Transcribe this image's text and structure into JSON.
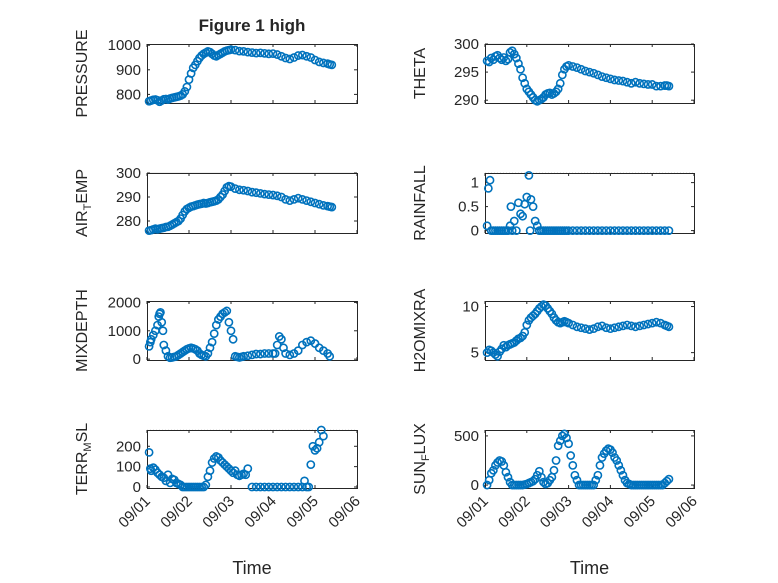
{
  "figure": {
    "title": "Figure 1 high"
  },
  "colors": {
    "marker": "#0072BD",
    "axis": "#262626",
    "grid": "#dfdfdf"
  },
  "chart_data": [
    {
      "type": "scatter",
      "ylabel": "PRESSURE",
      "xlabel": "",
      "ylim": [
        765,
        1005
      ],
      "yticks": [
        800,
        900,
        1000
      ],
      "xticks": [
        "09/01",
        "09/02",
        "09/03",
        "09/04",
        "09/05",
        "09/06"
      ],
      "grid": true,
      "minor_grid": true,
      "x": [
        0.05,
        0.1,
        0.15,
        0.2,
        0.25,
        0.3,
        0.35,
        0.4,
        0.45,
        0.5,
        0.55,
        0.6,
        0.65,
        0.7,
        0.75,
        0.8,
        0.85,
        0.9,
        0.95,
        1.0,
        1.05,
        1.1,
        1.15,
        1.2,
        1.25,
        1.3,
        1.35,
        1.4,
        1.45,
        1.5,
        1.55,
        1.6,
        1.65,
        1.7,
        1.75,
        1.8,
        1.85,
        1.9,
        1.95,
        2.0,
        2.1,
        2.2,
        2.3,
        2.4,
        2.5,
        2.6,
        2.7,
        2.8,
        2.9,
        3.0,
        3.1,
        3.2,
        3.3,
        3.4,
        3.5,
        3.6,
        3.7,
        3.8,
        3.9,
        4.0,
        4.1,
        4.2,
        4.3,
        4.35,
        4.4
      ],
      "y": [
        772,
        775,
        778,
        779,
        776,
        770,
        775,
        780,
        781,
        779,
        783,
        786,
        788,
        790,
        792,
        795,
        800,
        812,
        830,
        860,
        885,
        908,
        920,
        935,
        948,
        958,
        965,
        970,
        975,
        972,
        965,
        958,
        955,
        960,
        965,
        970,
        975,
        978,
        980,
        982,
        980,
        976,
        975,
        972,
        970,
        968,
        969,
        967,
        965,
        966,
        962,
        955,
        948,
        944,
        950,
        958,
        960,
        955,
        950,
        940,
        932,
        928,
        925,
        922,
        920
      ]
    },
    {
      "type": "scatter",
      "ylabel": "THETA",
      "xlabel": "",
      "ylim": [
        289.5,
        300
      ],
      "yticks": [
        290,
        295,
        300
      ],
      "xticks": [
        "09/01",
        "09/02",
        "09/03",
        "09/04",
        "09/05",
        "09/06"
      ],
      "grid": true,
      "minor_grid": true,
      "x": [
        0.05,
        0.1,
        0.15,
        0.2,
        0.25,
        0.3,
        0.35,
        0.4,
        0.45,
        0.5,
        0.55,
        0.6,
        0.65,
        0.7,
        0.75,
        0.8,
        0.85,
        0.9,
        0.95,
        1.0,
        1.05,
        1.1,
        1.15,
        1.2,
        1.25,
        1.3,
        1.35,
        1.4,
        1.45,
        1.5,
        1.55,
        1.6,
        1.65,
        1.7,
        1.75,
        1.8,
        1.85,
        1.9,
        1.95,
        2.0,
        2.1,
        2.2,
        2.3,
        2.4,
        2.5,
        2.6,
        2.7,
        2.8,
        2.9,
        3.0,
        3.1,
        3.2,
        3.3,
        3.4,
        3.5,
        3.6,
        3.7,
        3.8,
        3.9,
        4.0,
        4.1,
        4.2,
        4.3,
        4.35,
        4.4
      ],
      "y": [
        297,
        296.8,
        297.5,
        297.2,
        297.8,
        298,
        297.5,
        297.2,
        297.6,
        297,
        297.3,
        298.5,
        298.8,
        298.2,
        297.5,
        296.5,
        295.5,
        294,
        293,
        292,
        291.5,
        291,
        290.5,
        290,
        289.8,
        290,
        290.2,
        290.5,
        291,
        291.2,
        291.3,
        291,
        291.2,
        291.5,
        292,
        293,
        294.5,
        295.5,
        296,
        296.2,
        296,
        295.8,
        295.5,
        295.2,
        295,
        294.8,
        294.5,
        294.2,
        294,
        293.8,
        293.6,
        293.5,
        293.4,
        293.2,
        293,
        293.2,
        293,
        292.9,
        292.8,
        292.8,
        292.5,
        292.5,
        292.6,
        292.6,
        292.5
      ]
    },
    {
      "type": "scatter",
      "ylabel": "AIR_TEMP",
      "xlabel": "",
      "ylim": [
        275,
        300
      ],
      "yticks": [
        280,
        290,
        300
      ],
      "xticks": [
        "09/01",
        "09/02",
        "09/03",
        "09/04",
        "09/05",
        "09/06"
      ],
      "grid": true,
      "minor_grid": true,
      "x": [
        0.05,
        0.1,
        0.15,
        0.2,
        0.25,
        0.3,
        0.35,
        0.4,
        0.45,
        0.5,
        0.55,
        0.6,
        0.65,
        0.7,
        0.75,
        0.8,
        0.85,
        0.9,
        0.95,
        1.0,
        1.05,
        1.1,
        1.15,
        1.2,
        1.25,
        1.3,
        1.35,
        1.4,
        1.45,
        1.5,
        1.55,
        1.6,
        1.65,
        1.7,
        1.75,
        1.8,
        1.85,
        1.9,
        1.95,
        2.0,
        2.1,
        2.2,
        2.3,
        2.4,
        2.5,
        2.6,
        2.7,
        2.8,
        2.9,
        3.0,
        3.1,
        3.2,
        3.3,
        3.4,
        3.5,
        3.6,
        3.7,
        3.8,
        3.9,
        4.0,
        4.1,
        4.2,
        4.3,
        4.35,
        4.4
      ],
      "y": [
        276,
        276.2,
        276.5,
        276.8,
        276.5,
        276.8,
        277,
        277.2,
        277.5,
        277.6,
        278,
        278.5,
        279,
        279.5,
        280,
        281,
        282.5,
        284,
        285,
        285.5,
        286,
        286.2,
        286.5,
        286.8,
        287,
        287.2,
        287.5,
        287.3,
        287.5,
        287.8,
        288,
        288.2,
        288.5,
        289,
        290,
        291,
        292.5,
        294,
        294.5,
        294.3,
        293.5,
        293,
        292.8,
        292.5,
        292,
        291.8,
        291.5,
        291.2,
        291,
        290.8,
        290.5,
        290,
        289,
        288.5,
        289,
        289.5,
        289,
        288.5,
        288,
        287.5,
        287,
        286.5,
        286.2,
        286,
        285.8
      ]
    },
    {
      "type": "scatter",
      "ylabel": "RAINFALL",
      "xlabel": "",
      "ylim": [
        -0.05,
        1.2
      ],
      "yticks": [
        0,
        0.5,
        1
      ],
      "yticklabels": [
        "0",
        "0.5",
        "1"
      ],
      "xticks": [
        "09/01",
        "09/02",
        "09/03",
        "09/04",
        "09/05",
        "09/06"
      ],
      "grid": true,
      "minor_grid": true,
      "x": [
        0.05,
        0.08,
        0.12,
        0.15,
        0.2,
        0.25,
        0.3,
        0.35,
        0.4,
        0.45,
        0.5,
        0.55,
        0.6,
        0.62,
        0.65,
        0.7,
        0.75,
        0.8,
        0.85,
        0.9,
        0.95,
        1.0,
        1.05,
        1.08,
        1.1,
        1.15,
        1.2,
        1.25,
        1.3,
        1.35,
        1.4,
        1.45,
        1.5,
        1.55,
        1.6,
        1.65,
        1.7,
        1.75,
        1.8,
        1.85,
        1.9,
        1.95,
        2.0,
        2.1,
        2.2,
        2.3,
        2.4,
        2.5,
        2.6,
        2.7,
        2.8,
        2.9,
        3.0,
        3.1,
        3.2,
        3.3,
        3.4,
        3.5,
        3.6,
        3.7,
        3.8,
        3.9,
        4.0,
        4.1,
        4.2,
        4.3,
        4.4
      ],
      "y": [
        0.1,
        0.88,
        1.05,
        0,
        0,
        0,
        0,
        0,
        0,
        0,
        0,
        0,
        0.1,
        0.5,
        0,
        0.2,
        0,
        0.58,
        0.35,
        0.3,
        0.55,
        0.7,
        1.15,
        0,
        0.65,
        0.5,
        0.2,
        0.1,
        0,
        0,
        0,
        0,
        0,
        0,
        0,
        0,
        0,
        0,
        0,
        0,
        0,
        0,
        0,
        0,
        0,
        0,
        0,
        0,
        0,
        0,
        0,
        0,
        0,
        0,
        0,
        0,
        0,
        0,
        0,
        0,
        0,
        0,
        0,
        0,
        0,
        0,
        0
      ]
    },
    {
      "type": "scatter",
      "ylabel": "MIXDEPTH",
      "xlabel": "",
      "ylim": [
        -30,
        2050
      ],
      "yticks": [
        0,
        1000,
        2000
      ],
      "xticks": [
        "09/01",
        "09/02",
        "09/03",
        "09/04",
        "09/05",
        "09/06"
      ],
      "grid": true,
      "minor_grid": true,
      "x": [
        0.05,
        0.08,
        0.1,
        0.15,
        0.2,
        0.25,
        0.28,
        0.3,
        0.32,
        0.35,
        0.38,
        0.4,
        0.45,
        0.5,
        0.55,
        0.6,
        0.65,
        0.7,
        0.75,
        0.8,
        0.85,
        0.9,
        0.95,
        1.0,
        1.05,
        1.1,
        1.15,
        1.2,
        1.25,
        1.3,
        1.35,
        1.4,
        1.45,
        1.5,
        1.55,
        1.6,
        1.65,
        1.7,
        1.75,
        1.8,
        1.85,
        1.9,
        1.95,
        2.0,
        2.05,
        2.1,
        2.15,
        2.2,
        2.25,
        2.3,
        2.4,
        2.5,
        2.6,
        2.7,
        2.8,
        2.9,
        3.0,
        3.05,
        3.1,
        3.15,
        3.2,
        3.25,
        3.3,
        3.4,
        3.5,
        3.6,
        3.7,
        3.8,
        3.9,
        4.0,
        4.1,
        4.2,
        4.3,
        4.35
      ],
      "y": [
        450,
        600,
        700,
        850,
        1000,
        1200,
        1500,
        1600,
        1650,
        1300,
        1000,
        500,
        300,
        100,
        50,
        60,
        80,
        100,
        150,
        200,
        250,
        300,
        350,
        380,
        400,
        380,
        350,
        300,
        200,
        150,
        120,
        100,
        200,
        400,
        600,
        900,
        1200,
        1400,
        1500,
        1600,
        1650,
        1700,
        1300,
        1000,
        700,
        100,
        80,
        60,
        80,
        100,
        120,
        150,
        180,
        180,
        200,
        200,
        200,
        200,
        500,
        800,
        700,
        400,
        200,
        150,
        200,
        300,
        500,
        600,
        650,
        550,
        400,
        300,
        200,
        100
      ]
    },
    {
      "type": "scatter",
      "ylabel": "H2OMIXRA",
      "xlabel": "",
      "ylim": [
        4.2,
        10.6
      ],
      "yticks": [
        5,
        10
      ],
      "xticks": [
        "09/01",
        "09/02",
        "09/03",
        "09/04",
        "09/05",
        "09/06"
      ],
      "grid": true,
      "minor_grid": true,
      "x": [
        0.05,
        0.1,
        0.15,
        0.2,
        0.25,
        0.3,
        0.35,
        0.4,
        0.45,
        0.5,
        0.55,
        0.6,
        0.65,
        0.7,
        0.75,
        0.8,
        0.85,
        0.9,
        0.95,
        1.0,
        1.05,
        1.1,
        1.15,
        1.2,
        1.25,
        1.3,
        1.35,
        1.4,
        1.45,
        1.5,
        1.55,
        1.6,
        1.65,
        1.7,
        1.75,
        1.8,
        1.85,
        1.9,
        1.95,
        2.0,
        2.1,
        2.2,
        2.3,
        2.4,
        2.5,
        2.6,
        2.7,
        2.8,
        2.9,
        3.0,
        3.1,
        3.2,
        3.3,
        3.4,
        3.5,
        3.6,
        3.7,
        3.8,
        3.9,
        4.0,
        4.1,
        4.2,
        4.3,
        4.35,
        4.4
      ],
      "y": [
        5,
        5.3,
        5.2,
        5,
        4.8,
        4.6,
        5.1,
        5.4,
        5.8,
        5.6,
        5.8,
        5.9,
        6,
        6.1,
        6.3,
        6.5,
        6.6,
        6.8,
        7.2,
        8,
        8.5,
        8.8,
        9,
        9.2,
        9.5,
        9.8,
        10,
        10.2,
        10.1,
        9.8,
        9.5,
        9.2,
        8.8,
        8.5,
        8.3,
        8.2,
        8.3,
        8.4,
        8.3,
        8.2,
        8,
        7.8,
        7.7,
        7.6,
        7.5,
        7.6,
        7.8,
        7.9,
        7.7,
        7.6,
        7.7,
        7.8,
        7.9,
        8,
        7.9,
        7.8,
        7.9,
        8,
        8.1,
        8.2,
        8.3,
        8.2,
        8,
        7.9,
        7.8
      ]
    },
    {
      "type": "scatter",
      "ylabel": "TERR_MSL",
      "xlabel": "Time",
      "ylim": [
        -5,
        280
      ],
      "yticks": [
        0,
        100,
        200
      ],
      "xticks": [
        "09/01",
        "09/02",
        "09/03",
        "09/04",
        "09/05",
        "09/06"
      ],
      "grid": true,
      "minor_grid": true,
      "x": [
        0.05,
        0.08,
        0.1,
        0.15,
        0.2,
        0.25,
        0.3,
        0.35,
        0.4,
        0.45,
        0.5,
        0.55,
        0.6,
        0.65,
        0.7,
        0.75,
        0.8,
        0.85,
        0.9,
        0.95,
        1.0,
        1.05,
        1.1,
        1.15,
        1.2,
        1.25,
        1.3,
        1.35,
        1.4,
        1.45,
        1.5,
        1.55,
        1.6,
        1.65,
        1.7,
        1.75,
        1.8,
        1.85,
        1.9,
        1.95,
        2.0,
        2.05,
        2.1,
        2.15,
        2.2,
        2.25,
        2.3,
        2.35,
        2.4,
        2.5,
        2.6,
        2.7,
        2.8,
        2.9,
        3.0,
        3.1,
        3.2,
        3.3,
        3.4,
        3.5,
        3.6,
        3.7,
        3.75,
        3.8,
        3.85,
        3.9,
        3.95,
        4.0,
        4.05,
        4.1,
        4.15,
        4.2
      ],
      "y": [
        170,
        90,
        80,
        95,
        85,
        70,
        60,
        50,
        45,
        30,
        60,
        20,
        40,
        35,
        20,
        15,
        10,
        0,
        0,
        0,
        0,
        0,
        0,
        0,
        0,
        0,
        0,
        0,
        10,
        50,
        80,
        120,
        140,
        150,
        145,
        130,
        120,
        110,
        100,
        90,
        80,
        70,
        80,
        60,
        55,
        60,
        65,
        60,
        90,
        0,
        0,
        0,
        0,
        0,
        0,
        0,
        0,
        0,
        0,
        0,
        0,
        0,
        30,
        0,
        0,
        110,
        200,
        180,
        190,
        220,
        280,
        250
      ]
    },
    {
      "type": "scatter",
      "ylabel": "SUN_FLUX",
      "xlabel": "Time",
      "ylim": [
        -30,
        560
      ],
      "yticks": [
        0,
        500
      ],
      "xticks": [
        "09/01",
        "09/02",
        "09/03",
        "09/04",
        "09/05",
        "09/06"
      ],
      "grid": true,
      "minor_grid": true,
      "x": [
        0.05,
        0.1,
        0.15,
        0.2,
        0.25,
        0.3,
        0.35,
        0.4,
        0.45,
        0.5,
        0.55,
        0.6,
        0.65,
        0.7,
        0.75,
        0.8,
        0.85,
        0.9,
        0.95,
        1.0,
        1.05,
        1.1,
        1.15,
        1.2,
        1.25,
        1.3,
        1.35,
        1.4,
        1.45,
        1.5,
        1.55,
        1.6,
        1.65,
        1.7,
        1.75,
        1.8,
        1.85,
        1.9,
        1.95,
        2.0,
        2.05,
        2.1,
        2.15,
        2.2,
        2.25,
        2.3,
        2.35,
        2.4,
        2.45,
        2.5,
        2.55,
        2.6,
        2.65,
        2.7,
        2.75,
        2.8,
        2.85,
        2.9,
        2.95,
        3.0,
        3.05,
        3.1,
        3.15,
        3.2,
        3.25,
        3.3,
        3.35,
        3.4,
        3.45,
        3.5,
        3.55,
        3.6,
        3.65,
        3.7,
        3.75,
        3.8,
        3.85,
        3.9,
        3.95,
        4.0,
        4.05,
        4.1,
        4.15,
        4.2,
        4.25,
        4.3,
        4.35,
        4.4
      ],
      "y": [
        0,
        50,
        120,
        150,
        200,
        230,
        250,
        240,
        200,
        130,
        80,
        30,
        0,
        0,
        0,
        0,
        0,
        0,
        5,
        10,
        20,
        30,
        40,
        60,
        100,
        140,
        80,
        30,
        10,
        20,
        50,
        80,
        150,
        250,
        400,
        450,
        500,
        520,
        480,
        420,
        300,
        200,
        100,
        50,
        0,
        0,
        0,
        0,
        0,
        0,
        0,
        0,
        50,
        100,
        200,
        280,
        320,
        350,
        370,
        360,
        330,
        280,
        250,
        200,
        150,
        100,
        50,
        20,
        10,
        0,
        0,
        0,
        0,
        0,
        0,
        0,
        0,
        0,
        0,
        0,
        0,
        0,
        0,
        0,
        0,
        20,
        40,
        60
      ]
    }
  ]
}
